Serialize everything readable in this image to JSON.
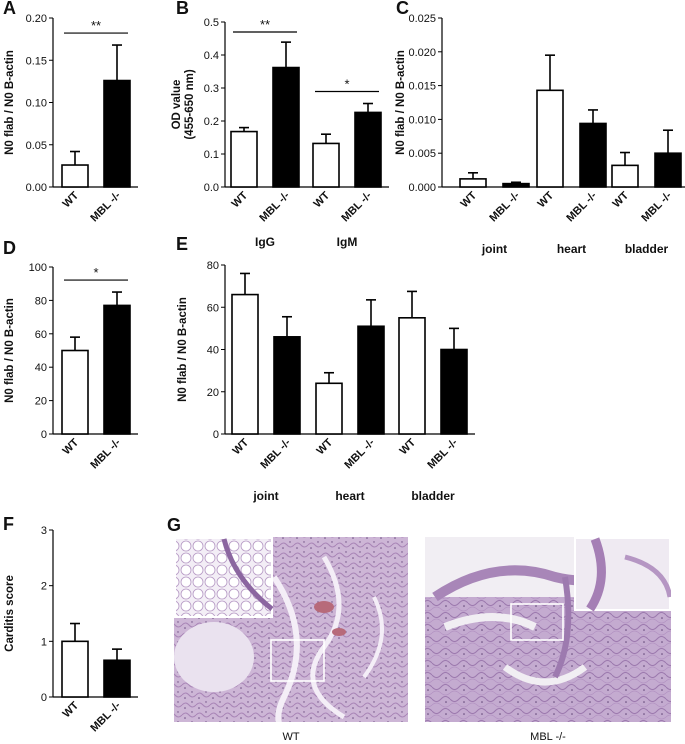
{
  "colors": {
    "wt": "#ffffff",
    "mbl": "#000000",
    "stroke": "#000000",
    "tissue": "#c9b3d2",
    "bg": "#f1eef3",
    "box": "#ffffff"
  },
  "chart_data": [
    {
      "panel": "A",
      "type": "bar",
      "ylabel": "N0 flab / N0 B-actin",
      "ylim": [
        0,
        0.2
      ],
      "yticks": [
        "0.00",
        "0.05",
        "0.10",
        "0.15",
        "0.20"
      ],
      "groups": [
        {
          "label": "",
          "bars": [
            {
              "category": "WT",
              "value": 0.026,
              "error": 0.016,
              "fill": "white"
            },
            {
              "category": "MBL -/-",
              "value": 0.126,
              "error": 0.042,
              "fill": "black"
            }
          ]
        }
      ],
      "significance": [
        {
          "text": "**",
          "from": [
            0,
            0
          ],
          "to": [
            0,
            1
          ]
        }
      ]
    },
    {
      "panel": "B",
      "type": "bar",
      "ylabel": "OD value (455-650 nm)",
      "ylabel_lines": [
        "OD value",
        "(455-650 nm)"
      ],
      "ylim": [
        0,
        0.5
      ],
      "yticks": [
        "0.0",
        "0.1",
        "0.2",
        "0.3",
        "0.4",
        "0.5"
      ],
      "groups": [
        {
          "label": "IgG",
          "bars": [
            {
              "category": "WT",
              "value": 0.168,
              "error": 0.012,
              "fill": "white"
            },
            {
              "category": "MBL -/-",
              "value": 0.362,
              "error": 0.077,
              "fill": "black"
            }
          ]
        },
        {
          "label": "IgM",
          "bars": [
            {
              "category": "WT",
              "value": 0.132,
              "error": 0.028,
              "fill": "white"
            },
            {
              "category": "MBL -/-",
              "value": 0.226,
              "error": 0.027,
              "fill": "black"
            }
          ]
        }
      ],
      "significance": [
        {
          "text": "**",
          "from": [
            0,
            0
          ],
          "to": [
            0,
            1
          ]
        },
        {
          "text": "*",
          "from": [
            1,
            0
          ],
          "to": [
            1,
            1
          ]
        }
      ]
    },
    {
      "panel": "C",
      "type": "bar",
      "ylabel": "N0 flab / N0 B-actin",
      "ylim": [
        0,
        0.025
      ],
      "yticks": [
        "0.000",
        "0.005",
        "0.010",
        "0.015",
        "0.020",
        "0.025"
      ],
      "groups": [
        {
          "label": "joint",
          "bars": [
            {
              "category": "WT",
              "value": 0.0012,
              "error": 0.0009,
              "fill": "white"
            },
            {
              "category": "MBL -/-",
              "value": 0.0005,
              "error": 0.0002,
              "fill": "black"
            }
          ]
        },
        {
          "label": "heart",
          "bars": [
            {
              "category": "WT",
              "value": 0.0143,
              "error": 0.0052,
              "fill": "white"
            },
            {
              "category": "MBL -/-",
              "value": 0.0094,
              "error": 0.002,
              "fill": "black"
            }
          ]
        },
        {
          "label": "bladder",
          "bars": [
            {
              "category": "WT",
              "value": 0.0032,
              "error": 0.0019,
              "fill": "white"
            },
            {
              "category": "MBL -/-",
              "value": 0.005,
              "error": 0.0034,
              "fill": "black"
            }
          ]
        }
      ],
      "significance": []
    },
    {
      "panel": "D",
      "type": "bar",
      "ylabel": "N0 flab / N0 B-actin",
      "ylim": [
        0,
        100
      ],
      "yticks": [
        "0",
        "20",
        "40",
        "60",
        "80",
        "100"
      ],
      "groups": [
        {
          "label": "",
          "bars": [
            {
              "category": "WT",
              "value": 50,
              "error": 8,
              "fill": "white"
            },
            {
              "category": "MBL -/-",
              "value": 77,
              "error": 8,
              "fill": "black"
            }
          ]
        }
      ],
      "significance": [
        {
          "text": "*",
          "from": [
            0,
            0
          ],
          "to": [
            0,
            1
          ]
        }
      ]
    },
    {
      "panel": "E",
      "type": "bar",
      "ylabel": "N0 flab / N0 B-actin",
      "ylim": [
        0,
        80
      ],
      "yticks": [
        "0",
        "20",
        "40",
        "60",
        "80"
      ],
      "groups": [
        {
          "label": "joint",
          "bars": [
            {
              "category": "WT",
              "value": 66,
              "error": 10,
              "fill": "white"
            },
            {
              "category": "MBL -/-",
              "value": 46,
              "error": 9.5,
              "fill": "black"
            }
          ]
        },
        {
          "label": "heart",
          "bars": [
            {
              "category": "WT",
              "value": 24,
              "error": 5,
              "fill": "white"
            },
            {
              "category": "MBL -/-",
              "value": 51,
              "error": 12.5,
              "fill": "black"
            }
          ]
        },
        {
          "label": "bladder",
          "bars": [
            {
              "category": "WT",
              "value": 55,
              "error": 12.5,
              "fill": "white"
            },
            {
              "category": "MBL -/-",
              "value": 40,
              "error": 10,
              "fill": "black"
            }
          ]
        }
      ],
      "significance": []
    },
    {
      "panel": "F",
      "type": "bar",
      "ylabel": "Carditis score",
      "ylim": [
        0,
        3
      ],
      "yticks": [
        "0",
        "1",
        "2",
        "3"
      ],
      "groups": [
        {
          "label": "",
          "bars": [
            {
              "category": "WT",
              "value": 1.0,
              "error": 0.32,
              "fill": "white"
            },
            {
              "category": "MBL -/-",
              "value": 0.66,
              "error": 0.2,
              "fill": "black"
            }
          ]
        }
      ],
      "significance": []
    }
  ],
  "micrographs": {
    "panel": "G",
    "images": [
      {
        "caption": "WT"
      },
      {
        "caption": "MBL -/-"
      }
    ]
  }
}
